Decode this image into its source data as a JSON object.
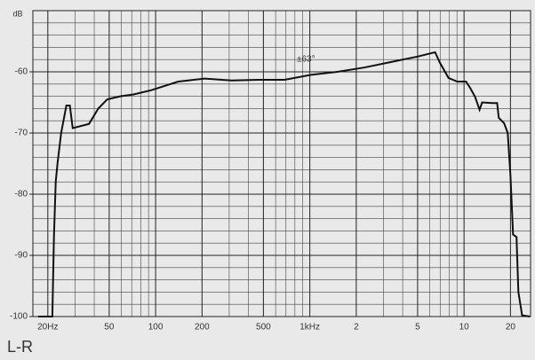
{
  "chart_data": {
    "type": "line",
    "title": "L-R",
    "y_label": "dB",
    "annotation": "±63°",
    "log_x": true,
    "grid": true,
    "color": "#111",
    "xlim": [
      16,
      27000
    ],
    "ylim": [
      -100,
      -50
    ],
    "xticks": [
      {
        "value": 20,
        "label": "20Hz"
      },
      50,
      100,
      200,
      500,
      {
        "value": 1000,
        "label": "1kHz"
      },
      {
        "value": 2000,
        "label": "2"
      },
      {
        "value": 5000,
        "label": "5"
      },
      {
        "value": 10000,
        "label": "10"
      },
      {
        "value": 20000,
        "label": "20"
      }
    ],
    "yticks": [
      -60,
      -70,
      -80,
      -90,
      -100
    ],
    "xminor": [
      30,
      40,
      60,
      70,
      80,
      90,
      300,
      400,
      600,
      700,
      800,
      900,
      3000,
      4000,
      6000,
      7000,
      8000,
      9000
    ],
    "yminor": [
      -98,
      -96,
      -94,
      -92,
      -88,
      -86,
      -84,
      -82,
      -78,
      -76,
      -74,
      -72,
      -68,
      -66,
      -64,
      -62,
      -58,
      -56,
      -54,
      -52
    ],
    "series": [
      {
        "name": "L-R",
        "x": [
          17.3,
          21.4,
          21.9,
          22.5,
          23.1,
          24.4,
          26.4,
          27.8,
          29,
          37,
          42.5,
          48.5,
          59,
          72,
          94,
          140,
          208,
          310,
          460,
          685,
          1020,
          1510,
          2250,
          3350,
          4990,
          6490,
          6940,
          7930,
          9040,
          10300,
          11000,
          11800,
          12600,
          13100,
          15300,
          16400,
          16800,
          18200,
          19200,
          20000,
          20800,
          21900,
          22500,
          23800,
          26700
        ],
        "values": [
          -100,
          -100,
          -87,
          -78,
          -75,
          -70,
          -65.5,
          -65.5,
          -69.2,
          -68.5,
          -66,
          -64.5,
          -64,
          -63.7,
          -63,
          -61.6,
          -61.1,
          -61.4,
          -61.3,
          -61.3,
          -60.5,
          -60,
          -59.3,
          -58.4,
          -57.5,
          -56.8,
          -58.4,
          -61,
          -61.6,
          -61.6,
          -62.7,
          -64.1,
          -66.2,
          -65,
          -65.1,
          -65.1,
          -67.5,
          -68.4,
          -70,
          -77,
          -86.6,
          -87,
          -96,
          -99.8,
          -100
        ]
      }
    ]
  }
}
